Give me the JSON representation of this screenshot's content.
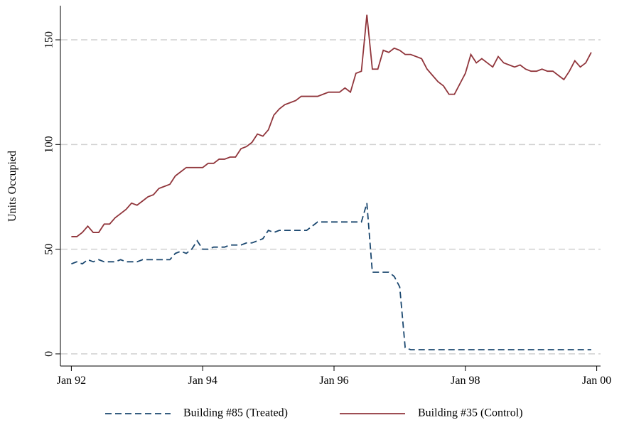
{
  "chart_data": {
    "type": "line",
    "y_label": "Units Occupied",
    "x": [
      0,
      1,
      2,
      3,
      4,
      5,
      6,
      7,
      8,
      9,
      10,
      11,
      12,
      13,
      14,
      15,
      16,
      17,
      18,
      19,
      20,
      21,
      22,
      23,
      24,
      25,
      26,
      27,
      28,
      29,
      30,
      31,
      32,
      33,
      34,
      35,
      36,
      37,
      38,
      39,
      40,
      41,
      42,
      43,
      44,
      45,
      46,
      47,
      48,
      49,
      50,
      51,
      52,
      53,
      54,
      55,
      56,
      57,
      58,
      59,
      60,
      61,
      62,
      63,
      64,
      65,
      66,
      67,
      68,
      69,
      70,
      71,
      72,
      73,
      74,
      75,
      76,
      77,
      78,
      79,
      80,
      81,
      82,
      83,
      84,
      85,
      86,
      87,
      88,
      89,
      90,
      91,
      92,
      93,
      94,
      95
    ],
    "series": [
      {
        "name": "Building #85 (Treated)",
        "color": "#1a476f",
        "dash": true,
        "values": [
          43,
          44,
          43,
          45,
          44,
          45,
          44,
          44,
          44,
          45,
          44,
          44,
          44,
          45,
          45,
          45,
          45,
          45,
          45,
          48,
          49,
          48,
          50,
          54,
          50,
          50,
          51,
          51,
          51,
          52,
          52,
          52,
          53,
          53,
          54,
          55,
          59,
          58,
          59,
          59,
          59,
          59,
          59,
          59,
          61,
          63,
          63,
          63,
          63,
          63,
          63,
          63,
          63,
          63,
          72,
          39,
          39,
          39,
          39,
          37,
          32,
          3,
          2,
          2,
          2,
          2,
          2,
          2,
          2,
          2,
          2,
          2,
          2,
          2,
          2,
          2,
          2,
          2,
          2,
          2,
          2,
          2,
          2,
          2,
          2,
          2,
          2,
          2,
          2,
          2,
          2,
          2,
          2,
          2,
          2,
          2
        ]
      },
      {
        "name": "Building #35 (Control)",
        "color": "#90353b",
        "dash": false,
        "values": [
          56,
          56,
          58,
          61,
          58,
          58,
          62,
          62,
          65,
          67,
          69,
          72,
          71,
          73,
          75,
          76,
          79,
          80,
          81,
          85,
          87,
          89,
          89,
          89,
          89,
          91,
          91,
          93,
          93,
          94,
          94,
          98,
          99,
          101,
          105,
          104,
          107,
          114,
          117,
          119,
          120,
          121,
          123,
          123,
          123,
          123,
          124,
          125,
          125,
          125,
          127,
          125,
          134,
          135,
          162,
          136,
          136,
          145,
          144,
          146,
          145,
          143,
          143,
          142,
          141,
          136,
          133,
          130,
          128,
          124,
          124,
          129,
          134,
          143,
          139,
          141,
          139,
          137,
          142,
          139,
          138,
          137,
          138,
          136,
          135,
          135,
          136,
          135,
          135,
          133,
          131,
          135,
          140,
          137,
          139,
          144
        ]
      }
    ],
    "xlim": [
      -2,
      96.7
    ],
    "xticks": [
      {
        "value": 0,
        "label": "Jan 92"
      },
      {
        "value": 24,
        "label": "Jan 94"
      },
      {
        "value": 48,
        "label": "Jan 96"
      },
      {
        "value": 72,
        "label": "Jan 98"
      },
      {
        "value": 96,
        "label": "Jan 00"
      }
    ],
    "ylim": [
      -5.8,
      166.3
    ],
    "yticks": [
      0,
      50,
      100,
      150
    ],
    "grid": true,
    "legend": "bottom"
  }
}
